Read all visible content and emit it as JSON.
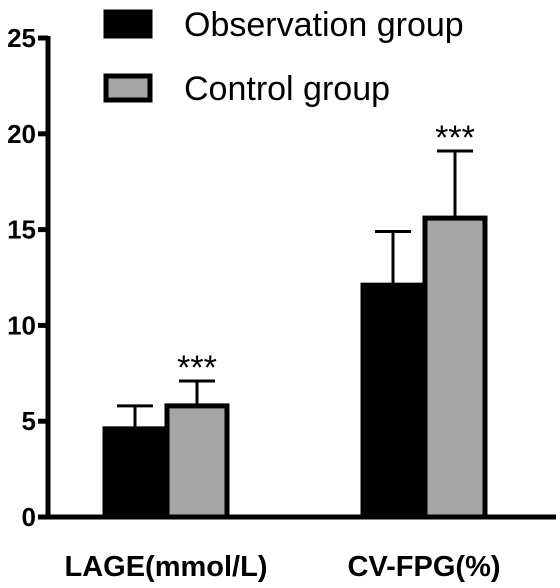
{
  "chart_data": {
    "type": "bar",
    "categories": [
      "LAGE(mmol/L)",
      "CV-FPG(%)"
    ],
    "series": [
      {
        "name": "Observation group",
        "values": [
          4.6,
          12.1
        ],
        "errors": [
          1.2,
          2.8
        ],
        "color": "#000000"
      },
      {
        "name": "Control group",
        "values": [
          5.8,
          15.6
        ],
        "errors": [
          1.3,
          3.5
        ],
        "color": "#a6a6a6"
      }
    ],
    "annotations": [
      "",
      "",
      "***",
      "***"
    ],
    "ylim": [
      0,
      25
    ],
    "yticks": [
      "0",
      "5",
      "10",
      "15",
      "20",
      "25"
    ],
    "xlabel": "",
    "ylabel": "",
    "legend_position": "top",
    "grid": false
  }
}
